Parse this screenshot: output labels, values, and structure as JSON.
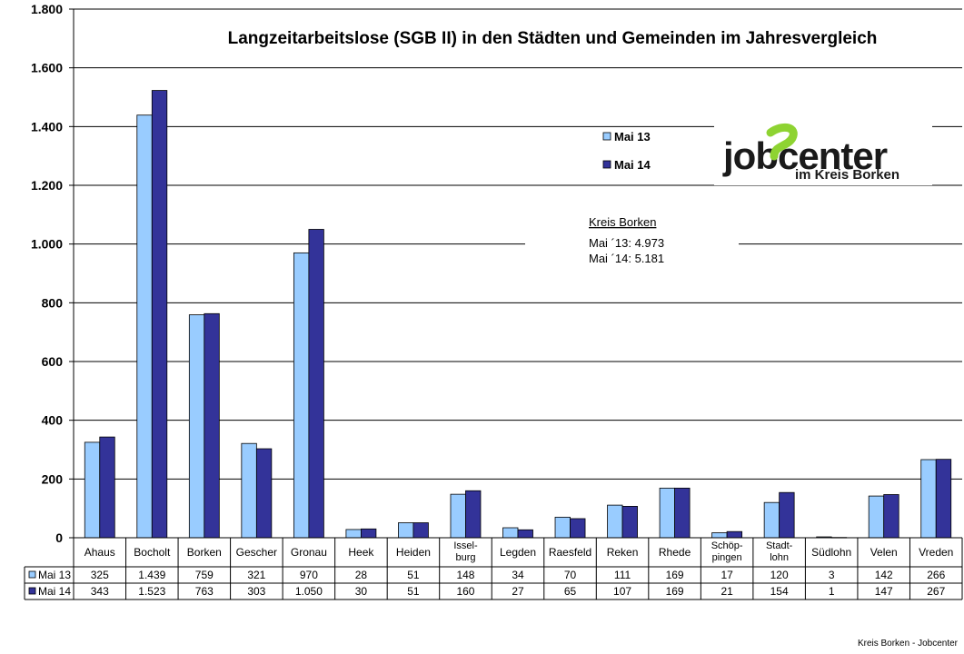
{
  "chart_data": {
    "type": "bar",
    "title": "Langzeitarbeitslose (SGB II) in den Städten und Gemeinden im Jahresvergleich",
    "categories": [
      "Ahaus",
      "Bocholt",
      "Borken",
      "Gescher",
      "Gronau",
      "Heek",
      "Heiden",
      "Issel-\nburg",
      "Legden",
      "Raesfeld",
      "Reken",
      "Rhede",
      "Schöp-\npingen",
      "Stadt-\nlohn",
      "Südlohn",
      "Velen",
      "Vreden"
    ],
    "series": [
      {
        "name": "Mai 13",
        "color": "#99ccff",
        "values": [
          325,
          1439,
          759,
          321,
          970,
          28,
          51,
          148,
          34,
          70,
          111,
          169,
          17,
          120,
          3,
          142,
          266
        ],
        "labels": [
          "325",
          "1.439",
          "759",
          "321",
          "970",
          "28",
          "51",
          "148",
          "34",
          "70",
          "111",
          "169",
          "17",
          "120",
          "3",
          "142",
          "266"
        ]
      },
      {
        "name": "Mai 14",
        "color": "#333399",
        "values": [
          343,
          1523,
          763,
          303,
          1050,
          30,
          51,
          160,
          27,
          65,
          107,
          169,
          21,
          154,
          1,
          147,
          267
        ],
        "labels": [
          "343",
          "1.523",
          "763",
          "303",
          "1.050",
          "30",
          "51",
          "160",
          "27",
          "65",
          "107",
          "169",
          "21",
          "154",
          "1",
          "147",
          "267"
        ]
      }
    ],
    "ylim": [
      0,
      1800
    ],
    "yticks": [
      0,
      200,
      400,
      600,
      800,
      1000,
      1200,
      1400,
      1600,
      1800
    ],
    "ytick_labels": [
      "0",
      "200",
      "400",
      "600",
      "800",
      "1.000",
      "1.200",
      "1.400",
      "1.600",
      "1.800"
    ],
    "grid": true,
    "legend_position": "top-right",
    "annotation": {
      "title": "Kreis Borken",
      "lines": [
        "Mai ´13: 4.973",
        "Mai ´14: 5.181"
      ]
    }
  },
  "logo": {
    "text_main": "jobcenter",
    "text_sub": "im Kreis Borken",
    "accent_color": "#8ed332",
    "text_color": "#1a1a1a"
  },
  "footer": "Kreis Borken - Jobcenter"
}
